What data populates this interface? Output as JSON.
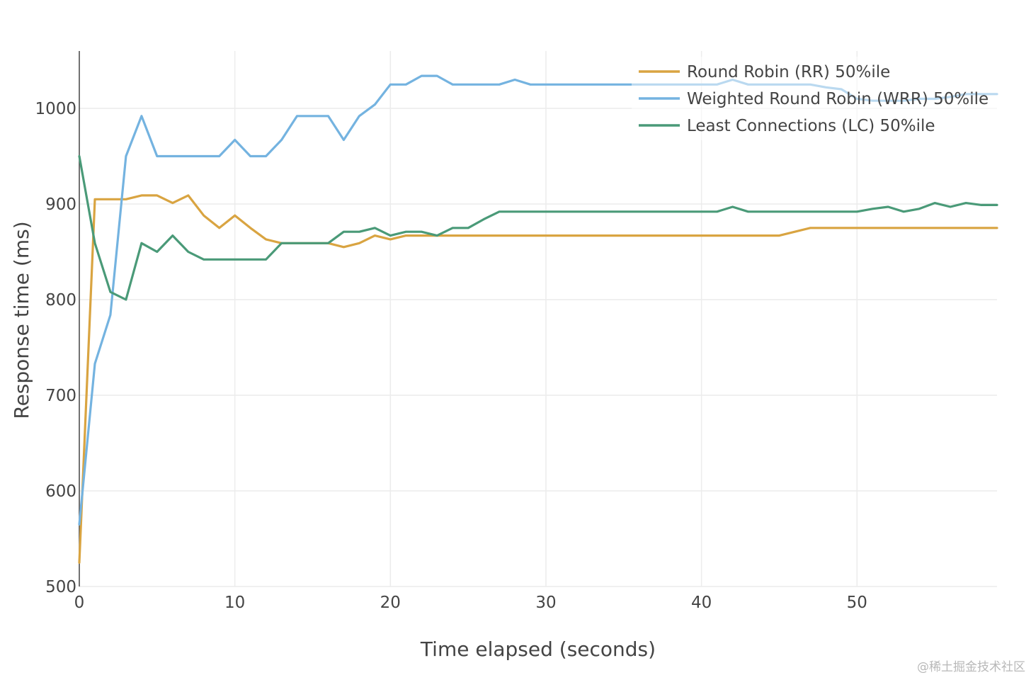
{
  "chart_data": {
    "type": "line",
    "title": "",
    "xlabel": "Time elapsed (seconds)",
    "ylabel": "Response time (ms)",
    "xlim": [
      0,
      59
    ],
    "ylim": [
      500,
      1060
    ],
    "xticks": [
      0,
      10,
      20,
      30,
      40,
      50
    ],
    "yticks": [
      500,
      600,
      700,
      800,
      900,
      1000
    ],
    "grid": true,
    "legend_position": "top-right",
    "series": [
      {
        "name": "Round Robin (RR) 50%ile",
        "color": "#d9a441",
        "x": [
          0,
          1,
          2,
          3,
          4,
          5,
          6,
          7,
          8,
          9,
          10,
          11,
          12,
          13,
          14,
          15,
          16,
          17,
          18,
          19,
          20,
          21,
          22,
          23,
          24,
          25,
          26,
          27,
          28,
          29,
          30,
          31,
          32,
          33,
          34,
          35,
          36,
          37,
          38,
          39,
          40,
          41,
          42,
          43,
          44,
          45,
          46,
          47,
          48,
          49,
          50,
          51,
          52,
          53,
          54,
          55,
          56,
          57,
          58,
          59
        ],
        "values": [
          525,
          905,
          905,
          905,
          909,
          909,
          901,
          909,
          888,
          875,
          888,
          875,
          863,
          859,
          859,
          859,
          859,
          855,
          859,
          867,
          863,
          867,
          867,
          867,
          867,
          867,
          867,
          867,
          867,
          867,
          867,
          867,
          867,
          867,
          867,
          867,
          867,
          867,
          867,
          867,
          867,
          867,
          867,
          867,
          867,
          867,
          871,
          875,
          875,
          875,
          875,
          875,
          875,
          875,
          875,
          875,
          875,
          875,
          875,
          875
        ]
      },
      {
        "name": "Weighted Round Robin (WRR) 50%ile",
        "color": "#74b3e0",
        "x": [
          0,
          1,
          2,
          3,
          4,
          5,
          6,
          7,
          8,
          9,
          10,
          11,
          12,
          13,
          14,
          15,
          16,
          17,
          18,
          19,
          20,
          21,
          22,
          23,
          24,
          25,
          26,
          27,
          28,
          29,
          30,
          31,
          32,
          33,
          34,
          35,
          36,
          37,
          38,
          39,
          40,
          41,
          42,
          43,
          44,
          45,
          46,
          47,
          48,
          49,
          50,
          51,
          52,
          53,
          54,
          55,
          56,
          57,
          58,
          59
        ],
        "values": [
          565,
          733,
          784,
          950,
          992,
          950,
          950,
          950,
          950,
          950,
          967,
          950,
          950,
          967,
          992,
          992,
          992,
          967,
          992,
          1004,
          1025,
          1025,
          1034,
          1034,
          1025,
          1025,
          1025,
          1025,
          1030,
          1025,
          1025,
          1025,
          1025,
          1025,
          1025,
          1025,
          1025,
          1025,
          1025,
          1025,
          1025,
          1025,
          1030,
          1025,
          1025,
          1025,
          1025,
          1025,
          1022,
          1020,
          1010,
          1008,
          1008,
          1008,
          1010,
          1010,
          1012,
          1015,
          1015,
          1015
        ]
      },
      {
        "name": "Least Connections (LC) 50%ile",
        "color": "#4a9a78",
        "x": [
          0,
          1,
          2,
          3,
          4,
          5,
          6,
          7,
          8,
          9,
          10,
          11,
          12,
          13,
          14,
          15,
          16,
          17,
          18,
          19,
          20,
          21,
          22,
          23,
          24,
          25,
          26,
          27,
          28,
          29,
          30,
          31,
          32,
          33,
          34,
          35,
          36,
          37,
          38,
          39,
          40,
          41,
          42,
          43,
          44,
          45,
          46,
          47,
          48,
          49,
          50,
          51,
          52,
          53,
          54,
          55,
          56,
          57,
          58,
          59
        ],
        "values": [
          950,
          859,
          808,
          800,
          859,
          850,
          867,
          850,
          842,
          842,
          842,
          842,
          842,
          859,
          859,
          859,
          859,
          871,
          871,
          875,
          867,
          871,
          871,
          867,
          875,
          875,
          884,
          892,
          892,
          892,
          892,
          892,
          892,
          892,
          892,
          892,
          892,
          892,
          892,
          892,
          892,
          892,
          897,
          892,
          892,
          892,
          892,
          892,
          892,
          892,
          892,
          895,
          897,
          892,
          895,
          901,
          897,
          901,
          899,
          899
        ]
      }
    ]
  },
  "watermark": "@稀土掘金技术社区"
}
